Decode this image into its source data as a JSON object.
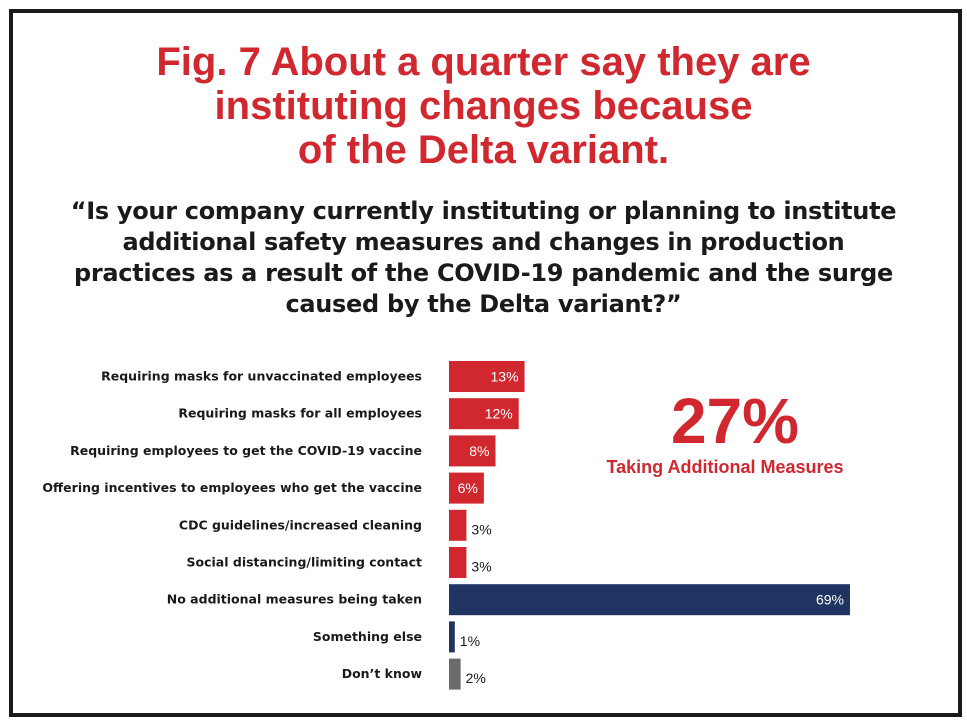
{
  "colors": {
    "accent_red": "#d0282e",
    "navy": "#1f3461",
    "gray": "#6b6b6b"
  },
  "header": {
    "title": "Fig. 7 About a quarter say they are\ninstituting changes because\nof the Delta variant.",
    "question": "“Is your company currently instituting or planning to institute\nadditional safety measures and changes in production\npractices as a result of the COVID-19 pandemic and the surge\ncaused by the Delta variant?”"
  },
  "callout": {
    "value": "27%",
    "caption": "Taking Additional Measures"
  },
  "chart_data": {
    "type": "bar",
    "orientation": "horizontal",
    "title": "Fig. 7 About a quarter say they are instituting changes because of the Delta variant.",
    "xlabel": "",
    "ylabel": "",
    "xlim": [
      0,
      70
    ],
    "grid": false,
    "categories": [
      "Requiring masks for unvaccinated employees",
      "Requiring masks for all employees",
      "Requiring employees to get the COVID-19 vaccine",
      "Offering incentives to employees who get the vaccine",
      "CDC guidelines/increased cleaning",
      "Social distancing/limiting contact",
      "No additional measures being taken",
      "Something else",
      "Don’t know"
    ],
    "values": [
      13,
      12,
      8,
      6,
      3,
      3,
      69,
      1,
      2
    ],
    "value_labels": [
      "13%",
      "12%",
      "8%",
      "6%",
      "3%",
      "3%",
      "69%",
      "1%",
      "2%"
    ],
    "bar_colors": [
      "#d0282e",
      "#d0282e",
      "#d0282e",
      "#d0282e",
      "#d0282e",
      "#d0282e",
      "#1f3461",
      "#1f3461",
      "#6b6b6b"
    ]
  }
}
